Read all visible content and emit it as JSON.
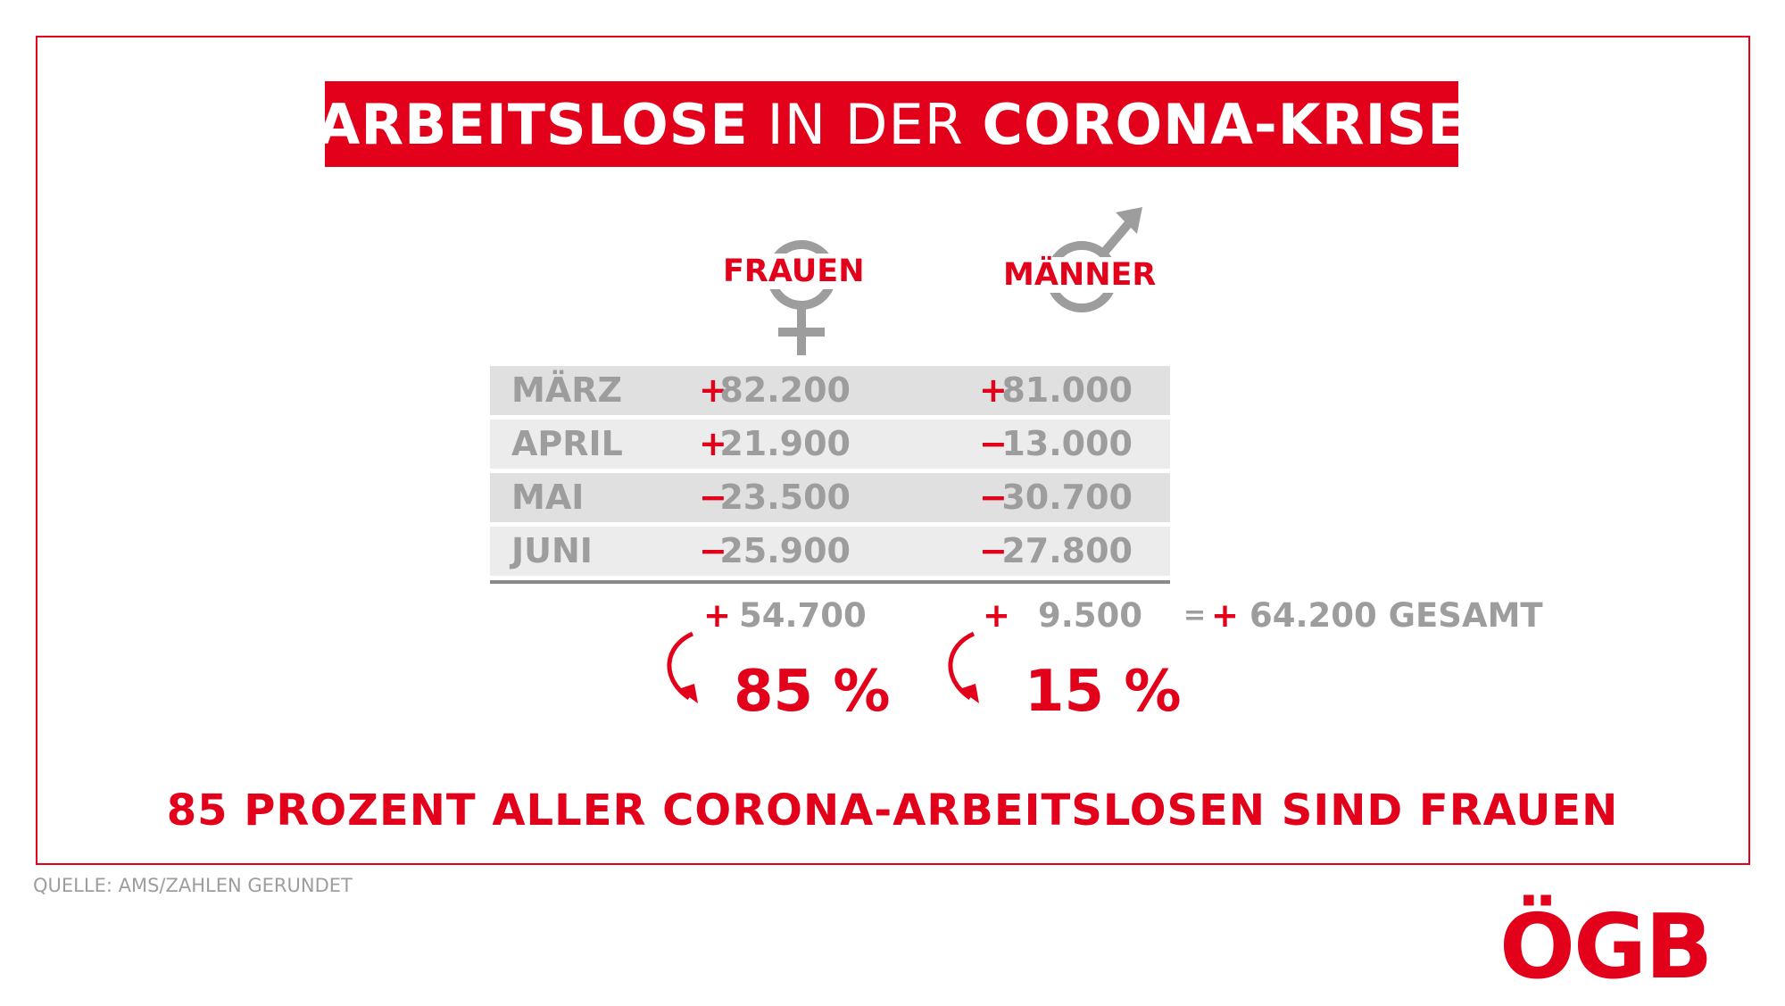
{
  "title": {
    "part1": "ARBEITSLOSE",
    "part2": "IN DER",
    "part3": "CORONA-KRISE"
  },
  "columns": {
    "women": "FRAUEN",
    "men": "MÄNNER"
  },
  "rows": [
    {
      "month": "MÄRZ",
      "women_sign": "+",
      "women_value": "82.200",
      "men_sign": "+",
      "men_value": "81.000"
    },
    {
      "month": "APRIL",
      "women_sign": "+",
      "women_value": "21.900",
      "men_sign": "−",
      "men_value": "13.000"
    },
    {
      "month": "MAI",
      "women_sign": "−",
      "women_value": "23.500",
      "men_sign": "−",
      "men_value": "30.700"
    },
    {
      "month": "JUNI",
      "women_sign": "−",
      "women_value": "25.900",
      "men_sign": "−",
      "men_value": "27.800"
    }
  ],
  "totals": {
    "women_sign": "+",
    "women_value": "54.700",
    "men_sign": "+",
    "men_value": "9.500",
    "equals": "=",
    "total_sign": "+",
    "total_value": "64.200 GESAMT"
  },
  "percentages": {
    "women": "85 %",
    "men": "15 %"
  },
  "conclusion": "85 PROZENT ALLER CORONA-ARBEITSLOSEN SIND FRAUEN",
  "source": "QUELLE: AMS/ZAHLEN GERUNDET",
  "logo": {
    "text": "ÖGB"
  },
  "colors": {
    "accent": "#e2001a",
    "gray": "#9d9d9d",
    "row_dark": "#e0e0e0",
    "row_light": "#ececec"
  },
  "icons": [
    "female-symbol-icon",
    "male-symbol-icon",
    "curved-arrow-icon"
  ]
}
